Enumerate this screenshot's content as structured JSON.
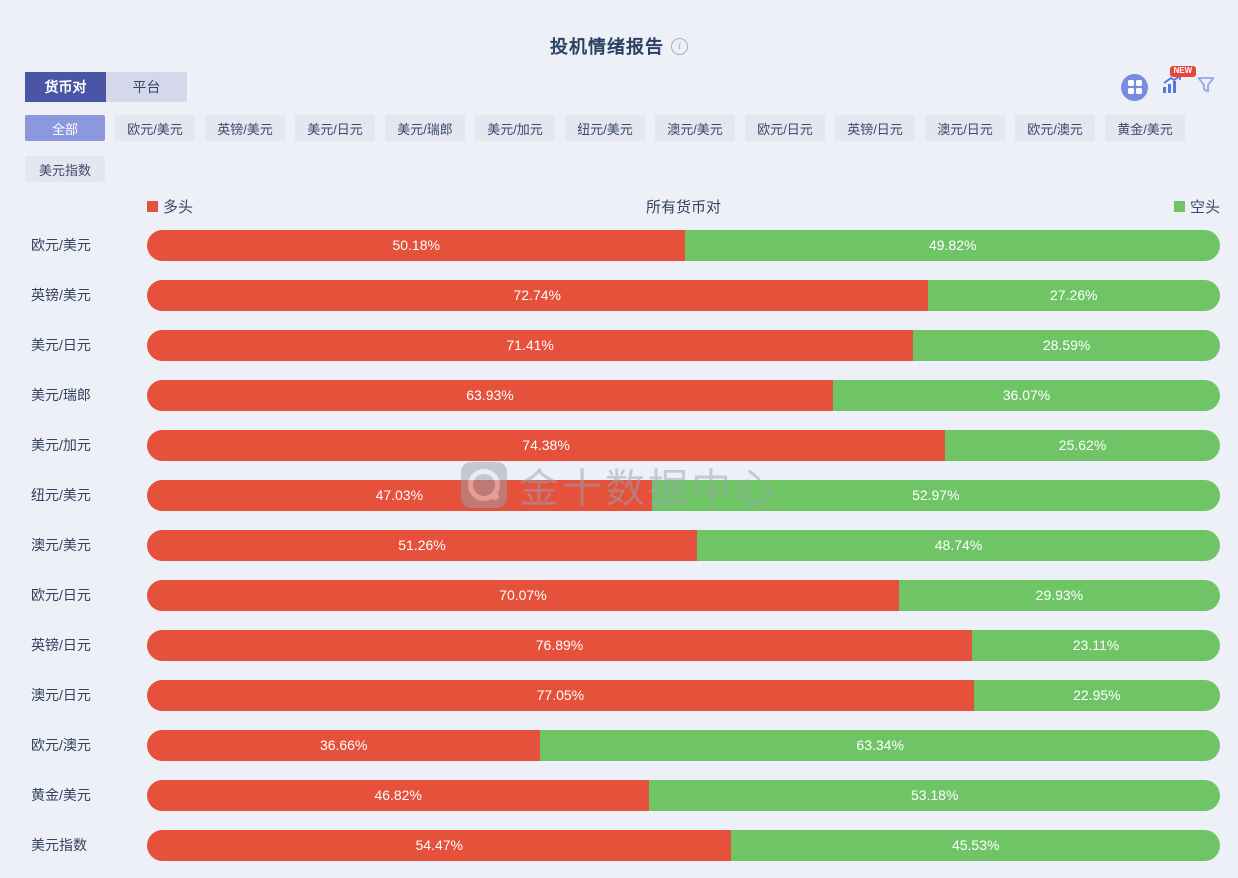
{
  "page": {
    "title": "投机情绪报告"
  },
  "tabs": [
    {
      "label": "货币对",
      "active": true
    },
    {
      "label": "平台",
      "active": false
    }
  ],
  "toolbar": {
    "new_badge": "NEW",
    "icons": [
      "grid-dashboard-icon",
      "trend-chart-icon",
      "filter-funnel-icon"
    ]
  },
  "filters": {
    "active": "全部",
    "options": [
      "全部",
      "欧元/美元",
      "英镑/美元",
      "美元/日元",
      "美元/瑞郎",
      "美元/加元",
      "纽元/美元",
      "澳元/美元",
      "欧元/日元",
      "英镑/日元",
      "澳元/日元",
      "欧元/澳元",
      "黄金/美元",
      "美元指数"
    ]
  },
  "chart_data": {
    "type": "bar",
    "orientation": "horizontal-stacked",
    "title": "所有货币对",
    "value_format": "percent",
    "legend": [
      {
        "name": "多头",
        "color": "#e5513a"
      },
      {
        "name": "空头",
        "color": "#6fc566"
      }
    ],
    "categories": [
      "欧元/美元",
      "英镑/美元",
      "美元/日元",
      "美元/瑞郎",
      "美元/加元",
      "纽元/美元",
      "澳元/美元",
      "欧元/日元",
      "英镑/日元",
      "澳元/日元",
      "欧元/澳元",
      "黄金/美元",
      "美元指数"
    ],
    "series": [
      {
        "name": "多头",
        "color": "#e5513a",
        "values": [
          50.18,
          72.74,
          71.41,
          63.93,
          74.38,
          47.03,
          51.26,
          70.07,
          76.89,
          77.05,
          36.66,
          46.82,
          54.47
        ]
      },
      {
        "name": "空头",
        "color": "#6fc566",
        "values": [
          49.82,
          27.26,
          28.59,
          36.07,
          25.62,
          52.97,
          48.74,
          29.93,
          23.11,
          22.95,
          63.34,
          53.18,
          45.53
        ]
      }
    ]
  },
  "watermark": {
    "text": "金十数据中心"
  },
  "colors": {
    "background": "#eef0f7",
    "long": "#e5513a",
    "short": "#6fc566",
    "tab_active": "#4a56a5",
    "filter_active": "#8b98de",
    "accent_icon": "#7b8ce0",
    "badge": "#e8453c",
    "text_dark": "#33425e"
  }
}
